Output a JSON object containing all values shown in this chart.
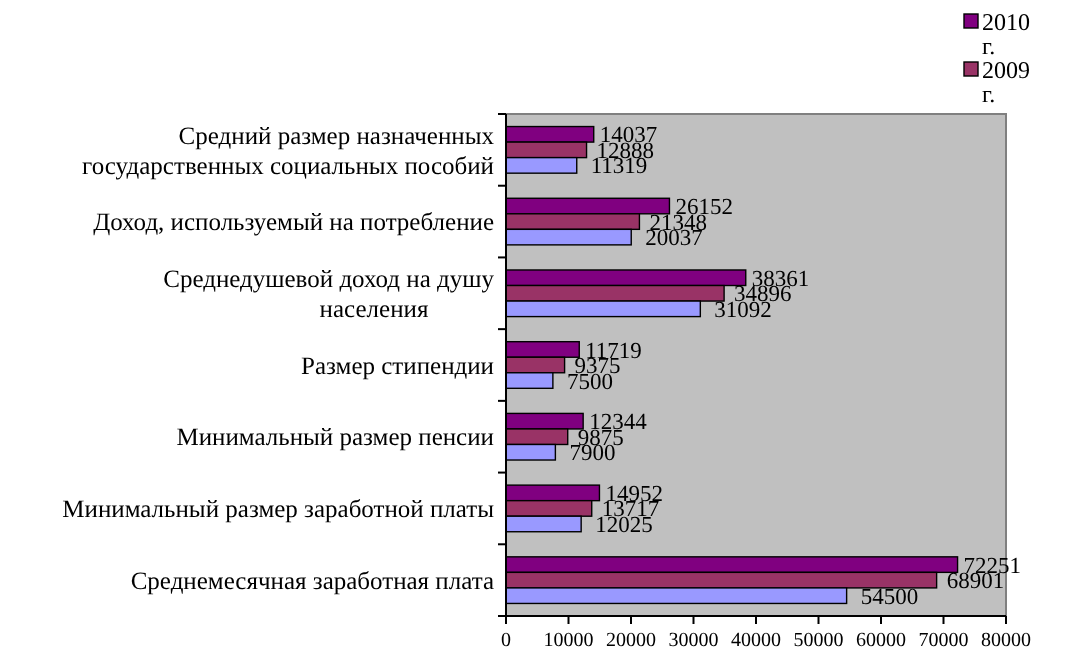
{
  "chart_data": {
    "type": "bar",
    "orientation": "horizontal",
    "categories": [
      "Средний размер назначенных государственных социальных пособий",
      "Доход, используемый на потребление",
      "Среднедушевой доход на душу населения",
      "Размер стипендии",
      "Минимальный размер пенсии",
      "Минимальный размер заработной платы",
      "Среднемесячная заработная плата"
    ],
    "series": [
      {
        "name": "2010 г.",
        "color": "#800080",
        "values": [
          14037,
          26152,
          38361,
          11719,
          12344,
          14952,
          72251
        ]
      },
      {
        "name": "2009 г.",
        "color": "#993366",
        "values": [
          12888,
          21348,
          34896,
          9375,
          9875,
          13717,
          68901
        ]
      },
      {
        "color": "#9999ff",
        "values": [
          11319,
          20037,
          31092,
          7500,
          7900,
          12025,
          54500
        ]
      }
    ],
    "xlim": [
      0,
      80000
    ],
    "xticks": [
      0,
      10000,
      20000,
      30000,
      40000,
      50000,
      60000,
      70000,
      80000
    ],
    "data_labels": true,
    "grid": false,
    "legend": "top right"
  }
}
